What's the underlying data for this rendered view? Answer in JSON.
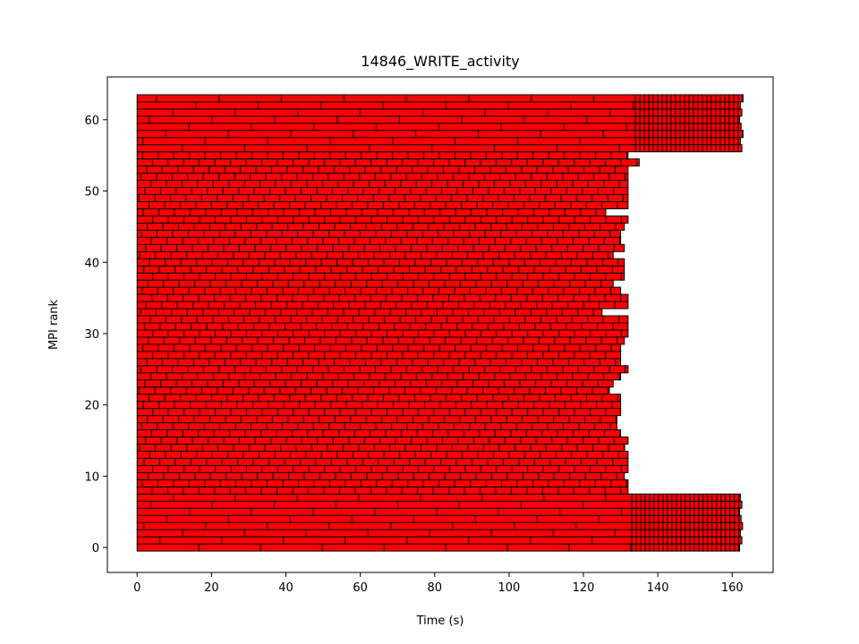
{
  "chart_data": {
    "type": "bar",
    "subtype": "horizontal-segmented",
    "title": "14846_WRITE_activity",
    "xlabel": "Time (s)",
    "ylabel": "MPI rank",
    "xlim": [
      -8,
      171
    ],
    "ylim": [
      -3.5,
      66
    ],
    "xticks": [
      0,
      20,
      40,
      60,
      80,
      100,
      120,
      140,
      160
    ],
    "yticks": [
      0,
      10,
      20,
      30,
      40,
      50,
      60
    ],
    "grid": false,
    "legend": "none",
    "bar_color": "#ff0000",
    "edge_color": "#000000",
    "ranks": 64,
    "series": [
      {
        "ranks": [
          0,
          7
        ],
        "phase1_end": 133,
        "phase1_segment": 16.6,
        "phase2_end": 162,
        "phase2_segment": 1.2
      },
      {
        "ranks": [
          8,
          55
        ],
        "phase1_end": 131,
        "phase1_segment": 4.2
      },
      {
        "ranks": [
          56,
          63
        ],
        "phase1_end": 134,
        "phase1_segment": 16.8,
        "phase2_end": 162,
        "phase2_segment": 1.2
      }
    ],
    "rank_end_times": {
      "8": 132,
      "9": 132,
      "10": 131,
      "11": 132,
      "12": 132,
      "13": 132,
      "14": 131,
      "15": 132,
      "16": 130,
      "17": 129,
      "18": 129,
      "19": 130,
      "20": 130,
      "21": 130,
      "22": 127,
      "23": 128,
      "24": 130,
      "25": 132,
      "26": 130,
      "27": 130,
      "28": 130,
      "29": 131,
      "30": 132,
      "31": 132,
      "32": 132,
      "33": 125,
      "34": 132,
      "35": 132,
      "36": 130,
      "37": 128,
      "38": 131,
      "39": 131,
      "40": 131,
      "41": 128,
      "42": 131,
      "43": 130,
      "44": 130,
      "45": 131,
      "46": 132,
      "47": 126,
      "48": 132,
      "49": 132,
      "50": 132,
      "51": 132,
      "52": 132,
      "53": 132,
      "54": 135,
      "55": 132
    }
  }
}
